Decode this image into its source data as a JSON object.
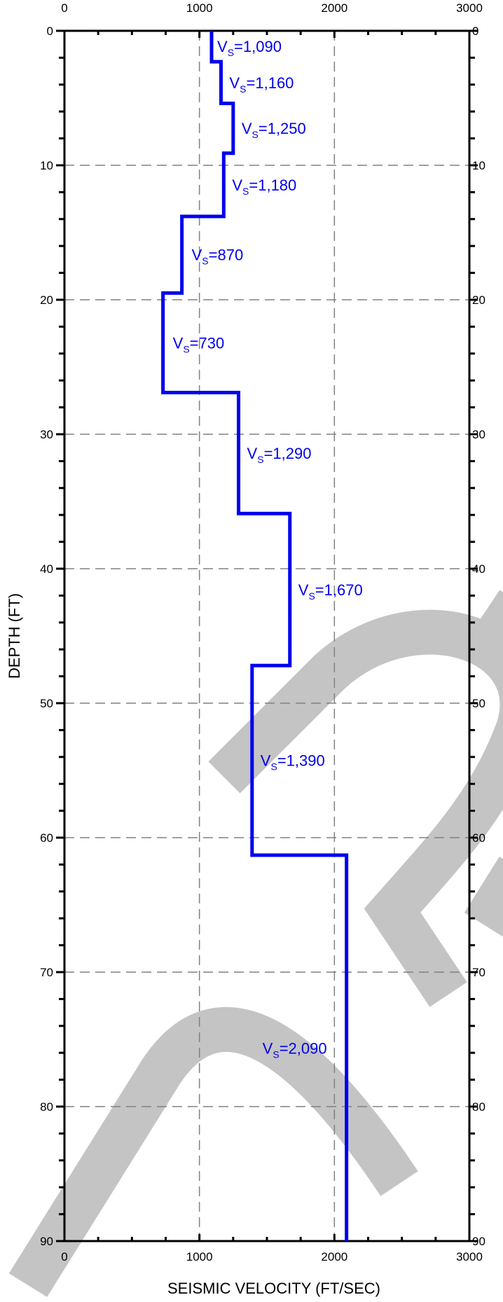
{
  "chart_data": {
    "type": "line",
    "xlabel": "SEISMIC VELOCITY (FT/SEC)",
    "ylabel": "DEPTH (FT)",
    "xlim": [
      0,
      3000
    ],
    "ylim": [
      0,
      90
    ],
    "y_inverted": true,
    "x_ticks": [
      "0",
      "1000",
      "2000",
      "3000"
    ],
    "y_ticks": [
      "0",
      "10",
      "20",
      "30",
      "40",
      "50",
      "60",
      "70",
      "80",
      "90"
    ],
    "grid": "dashed",
    "watermark": "DRAFT",
    "series": [
      {
        "color": "#0000ee",
        "layers": [
          {
            "top": 0,
            "bottom": 2.3,
            "vs": 1090,
            "label": "=1,090"
          },
          {
            "top": 2.3,
            "bottom": 5.4,
            "vs": 1160,
            "label": "=1,160"
          },
          {
            "top": 5.4,
            "bottom": 9.1,
            "vs": 1250,
            "label": "=1,250"
          },
          {
            "top": 9.1,
            "bottom": 13.8,
            "vs": 1180,
            "label": "=1,180"
          },
          {
            "top": 13.8,
            "bottom": 19.5,
            "vs": 870,
            "label": "=870"
          },
          {
            "top": 19.5,
            "bottom": 26.9,
            "vs": 730,
            "label": "=730"
          },
          {
            "top": 26.9,
            "bottom": 35.9,
            "vs": 1290,
            "label": "=1,290"
          },
          {
            "top": 35.9,
            "bottom": 47.2,
            "vs": 1670,
            "label": "=1,670"
          },
          {
            "top": 47.2,
            "bottom": 61.3,
            "vs": 1390,
            "label": "=1,390"
          },
          {
            "top": 61.3,
            "bottom": 90,
            "vs": 2090,
            "label": "=2,090"
          }
        ]
      }
    ],
    "label_prefix": "V",
    "label_subscript": "S"
  }
}
